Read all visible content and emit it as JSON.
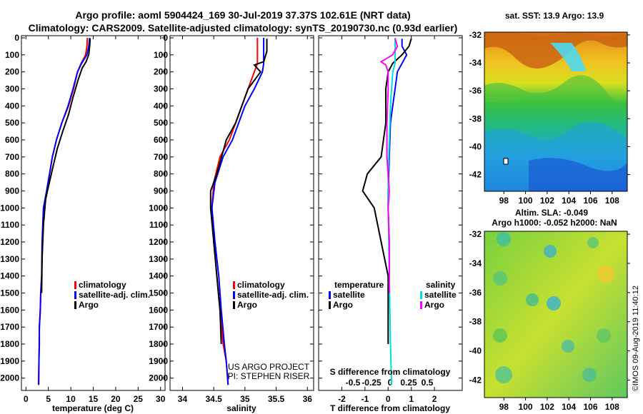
{
  "header": {
    "title_line1": "Argo profile: aoml 5904424_169 30-Jul-2019 37.37S 102.61E (NRT data)",
    "title_line2": "Climatology: CARS2009. Satellite-adjusted climatology: synTS_20190730.nc (0.93d earlier)"
  },
  "colors": {
    "climatology": "#ff0000",
    "satellite": "#0000ff",
    "argo": "#000000",
    "satellite_salinity": "#00dddd",
    "argo_salinity": "#ff00ff"
  },
  "chart_data": [
    {
      "type": "line",
      "id": "temperature",
      "xlabel": "temperature (deg C)",
      "ylabel": "",
      "xlim": [
        -1,
        31
      ],
      "xticks": [
        0,
        5,
        10,
        15,
        20,
        25,
        30
      ],
      "ylim": [
        2060,
        0
      ],
      "yticks": [
        0,
        100,
        200,
        300,
        400,
        500,
        600,
        700,
        800,
        900,
        1000,
        1100,
        1200,
        1300,
        1400,
        1500,
        1600,
        1700,
        1800,
        1900,
        2000
      ],
      "legend": [
        "climatology",
        "satellite-adj. clim.",
        "Argo"
      ],
      "legend_position": "lower-right",
      "series": [
        {
          "name": "climatology",
          "color": "#ff0000",
          "x": [
            13.7,
            13.6,
            13.3,
            12.3,
            11.5,
            10.6,
            9.5,
            8.0,
            6.8,
            5.9,
            4.7,
            4.0,
            3.7,
            3.5,
            3.3,
            3.2,
            3.0,
            2.95,
            2.9,
            2.8
          ],
          "y": [
            0,
            50,
            100,
            150,
            200,
            300,
            400,
            500,
            600,
            700,
            900,
            1000,
            1200,
            1400,
            1500,
            1600,
            1700,
            1800,
            1900,
            2040
          ]
        },
        {
          "name": "satellite-adj. clim.",
          "color": "#0000ff",
          "x": [
            14.2,
            14.0,
            13.6,
            12.4,
            11.5,
            10.5,
            9.4,
            8.0,
            6.8,
            5.9,
            4.6,
            3.9,
            3.6,
            3.5,
            3.3,
            3.2,
            3.0,
            3.0,
            2.9,
            2.85
          ],
          "y": [
            0,
            50,
            100,
            150,
            200,
            300,
            400,
            500,
            600,
            700,
            900,
            1000,
            1200,
            1400,
            1500,
            1600,
            1700,
            1800,
            1900,
            2040
          ]
        },
        {
          "name": "Argo",
          "color": "#000000",
          "x": [
            14.3,
            14.2,
            14.0,
            13.4,
            12.5,
            11.6,
            10.5,
            9.5,
            8.2,
            7.0,
            6.1,
            4.8,
            4.4,
            3.9,
            3.6,
            3.5
          ],
          "y": [
            5,
            50,
            100,
            140,
            180,
            250,
            350,
            450,
            550,
            650,
            750,
            900,
            950,
            1100,
            1300,
            1500
          ]
        }
      ]
    },
    {
      "type": "line",
      "id": "salinity",
      "xlabel": "salinity",
      "ylabel": "",
      "xlim": [
        33.8,
        36.1
      ],
      "xticks": [
        34,
        34.5,
        35,
        35.5,
        36
      ],
      "xticklabels": [
        "34",
        "34.5",
        "35",
        "35.5",
        "36"
      ],
      "ylim": [
        2060,
        0
      ],
      "legend": [
        "climatology",
        "satellite-adj. clim.",
        "Argo"
      ],
      "legend_position": "lower-right",
      "annotations": [
        "US ARGO PROJECT",
        "PI: STEPHEN RISER"
      ],
      "series": [
        {
          "name": "climatology",
          "color": "#ff0000",
          "x": [
            35.2,
            35.2,
            35.2,
            35.15,
            35.05,
            34.95,
            34.85,
            34.75,
            34.6,
            34.5,
            34.47,
            34.5,
            34.55,
            34.6,
            34.65,
            34.7,
            34.73
          ],
          "y": [
            0,
            100,
            150,
            200,
            300,
            400,
            500,
            600,
            700,
            850,
            1000,
            1200,
            1400,
            1600,
            1800,
            1900,
            2040
          ]
        },
        {
          "name": "satellite-adj. clim.",
          "color": "#0000ff",
          "x": [
            35.3,
            35.3,
            35.3,
            35.28,
            35.15,
            35.0,
            34.9,
            34.8,
            34.65,
            34.52,
            34.47,
            34.52,
            34.58,
            34.62,
            34.67,
            34.7,
            34.73
          ],
          "y": [
            0,
            100,
            150,
            200,
            300,
            400,
            500,
            600,
            700,
            850,
            1000,
            1200,
            1400,
            1600,
            1800,
            1900,
            2040
          ]
        },
        {
          "name": "Argo",
          "color": "#000000",
          "x": [
            35.35,
            35.35,
            35.3,
            35.15,
            35.25,
            35.05,
            34.95,
            34.85,
            34.7,
            34.55,
            34.45,
            34.45,
            34.5,
            34.55,
            34.6,
            34.62
          ],
          "y": [
            5,
            80,
            140,
            160,
            200,
            300,
            400,
            500,
            600,
            800,
            900,
            1000,
            1200,
            1400,
            1600,
            1800
          ]
        }
      ]
    },
    {
      "type": "line",
      "id": "difference",
      "xlabel": "T difference from climatology",
      "ylabel": "",
      "xlim": [
        -3,
        3.2
      ],
      "xticks": [
        -2,
        -1,
        0,
        1,
        2
      ],
      "xticklabels": [
        "-2",
        "-1",
        "0",
        "1",
        "2"
      ],
      "x2label": "S difference from climatology",
      "x2ticks": [
        -0.5,
        -0.25,
        0,
        0.25,
        0.5
      ],
      "x2ticklabels": [
        "-0.5",
        "-0.25",
        "0",
        "0.25",
        "0.5"
      ],
      "ylim": [
        2060,
        0
      ],
      "legend_titles": [
        "temperature",
        "salinity"
      ],
      "legend": [
        "satellite",
        "Argo",
        "satellite",
        "Argo"
      ],
      "legend_position": "lower",
      "series": [
        {
          "name": "satellite",
          "color": "#0000ff",
          "x": [
            0.6,
            0.6,
            0.8,
            0.6,
            0.4,
            0.3,
            0.2,
            0.1,
            0.05,
            0.0,
            0.0,
            0.05,
            0.05,
            0.05
          ],
          "y": [
            5,
            50,
            100,
            150,
            200,
            300,
            400,
            500,
            700,
            900,
            1000,
            1200,
            1400,
            1500
          ]
        },
        {
          "name": "Argo",
          "color": "#000000",
          "x": [
            1.0,
            0.9,
            0.6,
            0.2,
            0.0,
            -0.1,
            -0.1,
            -0.3,
            -0.9,
            -1.1,
            -0.6,
            -0.3,
            0.0,
            0.0
          ],
          "y": [
            5,
            50,
            100,
            150,
            200,
            300,
            500,
            700,
            800,
            900,
            1000,
            1200,
            1400,
            1800
          ]
        },
        {
          "name": "satellite",
          "color": "#00dddd",
          "x": [
            0.3,
            0.3,
            0.3,
            0.3,
            0.2,
            0.1,
            0.05,
            0.0,
            0.0,
            0.05,
            0.1,
            0.15
          ],
          "y": [
            0,
            50,
            100,
            150,
            200,
            400,
            600,
            800,
            1000,
            1400,
            1800,
            2040
          ]
        },
        {
          "name": "Argo",
          "color": "#ff00ff",
          "x": [
            0.3,
            0.4,
            0.2,
            -0.3,
            -0.1,
            0.0,
            0.0,
            -0.05,
            -0.05,
            0.05,
            0.0,
            0.05,
            0.05,
            0.05
          ],
          "y": [
            5,
            50,
            100,
            140,
            160,
            200,
            300,
            500,
            700,
            900,
            1000,
            1200,
            1400,
            1500
          ]
        }
      ]
    },
    {
      "type": "heatmap",
      "id": "sst_map",
      "title": "sat. SST: 13.9 Argo: 13.9",
      "xticks": [
        98,
        100,
        102,
        104,
        106,
        108
      ],
      "yticks": [
        -32,
        -34,
        -36,
        -38,
        -40,
        -42
      ],
      "xlim": [
        96.2,
        109.4
      ],
      "ylim": [
        -43.2,
        -31.8
      ]
    },
    {
      "type": "heatmap",
      "id": "sla_map",
      "title": "Altim. SLA: -0.049",
      "subtitle": "Argo h1000: -0.052 h2000: NaN",
      "xticks": [
        98,
        100,
        102,
        104,
        106,
        108
      ],
      "yticks": [
        -32,
        -34,
        -36,
        -38,
        -40,
        -42
      ],
      "xlim": [
        96.2,
        109.4
      ],
      "ylim": [
        -43.2,
        -31.8
      ]
    }
  ],
  "stamp": "©IMOS 09-Aug-2019 11:40:12"
}
